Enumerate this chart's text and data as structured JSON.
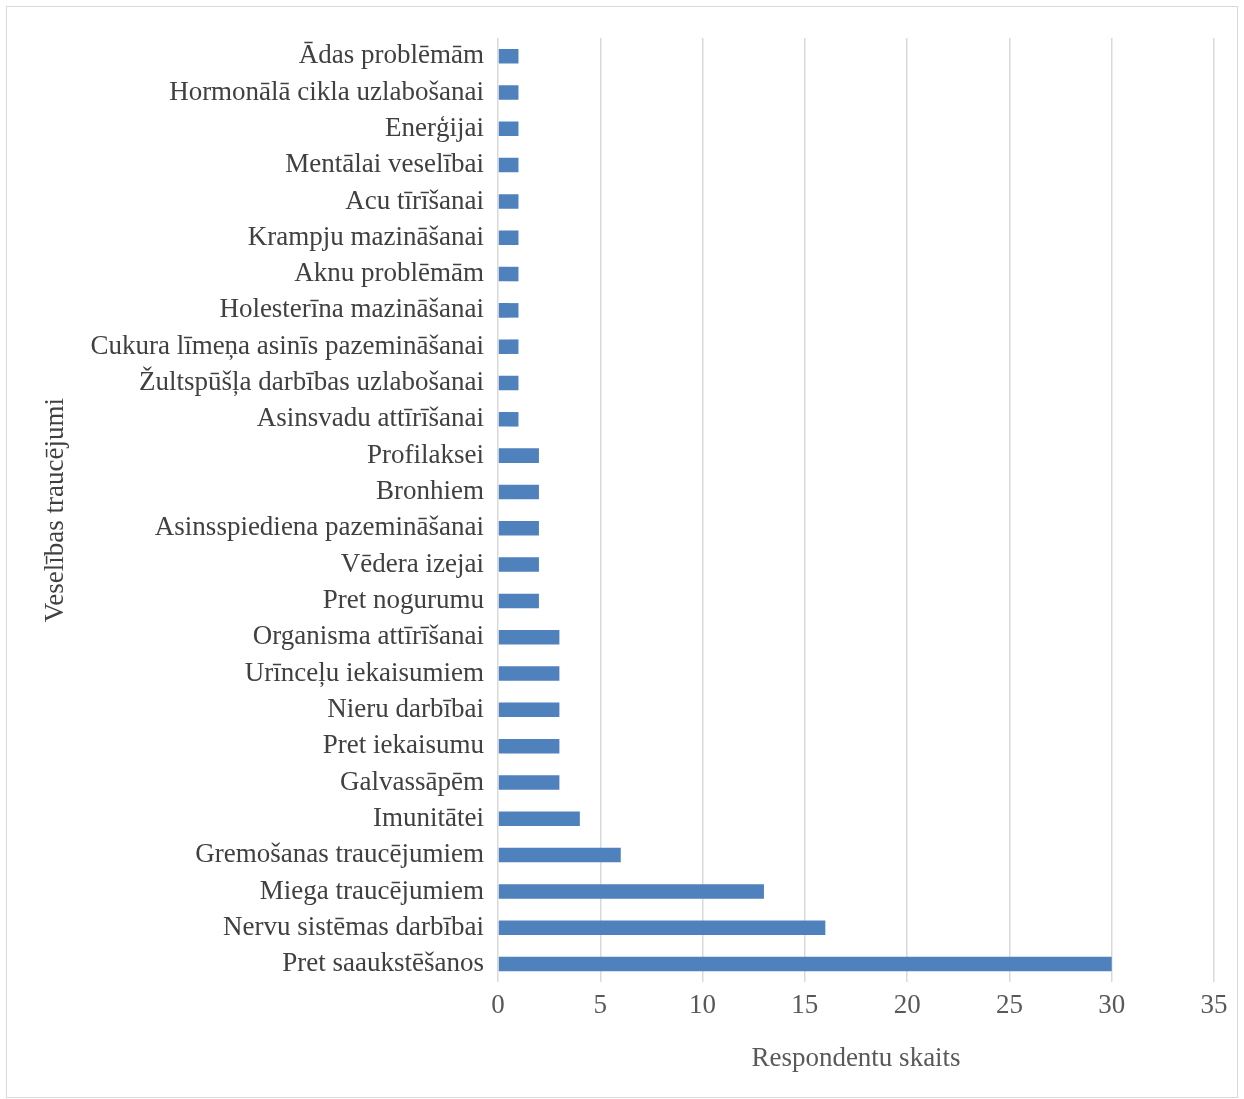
{
  "chart_data": {
    "type": "bar",
    "orientation": "horizontal",
    "xlabel": "Respondentu skaits",
    "ylabel": "Veselības traucējumi",
    "categories": [
      "Ādas problēmām",
      "Hormonālā cikla uzlabošanai",
      "Enerģijai",
      "Mentālai veselībai",
      "Acu tīrīšanai",
      "Krampju mazināšanai",
      "Aknu problēmām",
      "Holesterīna mazināšanai",
      "Cukura līmeņa asinīs pazemināšanai",
      "Žultspūšļa darbības uzlabošanai",
      "Asinsvadu attīrīšanai",
      "Profilaksei",
      "Bronhiem",
      "Asinsspiediena pazemināšanai",
      "Vēdera izejai",
      "Pret nogurumu",
      "Organisma attīrīšanai",
      "Urīnceļu iekaisumiem",
      "Nieru darbībai",
      "Pret iekaisumu",
      "Galvassāpēm",
      "Imunitātei",
      "Gremošanas traucējumiem",
      "Miega traucējumiem",
      "Nervu sistēmas darbībai",
      "Pret saaukstēšanos"
    ],
    "values": [
      1,
      1,
      1,
      1,
      1,
      1,
      1,
      1,
      1,
      1,
      1,
      2,
      2,
      2,
      2,
      2,
      3,
      3,
      3,
      3,
      3,
      4,
      6,
      13,
      16,
      30
    ],
    "color": "#4f81bd",
    "xlim": [
      0,
      35
    ],
    "xticks": [
      0,
      5,
      10,
      15,
      20,
      25,
      30,
      35
    ],
    "grid": "x",
    "legend": false
  }
}
